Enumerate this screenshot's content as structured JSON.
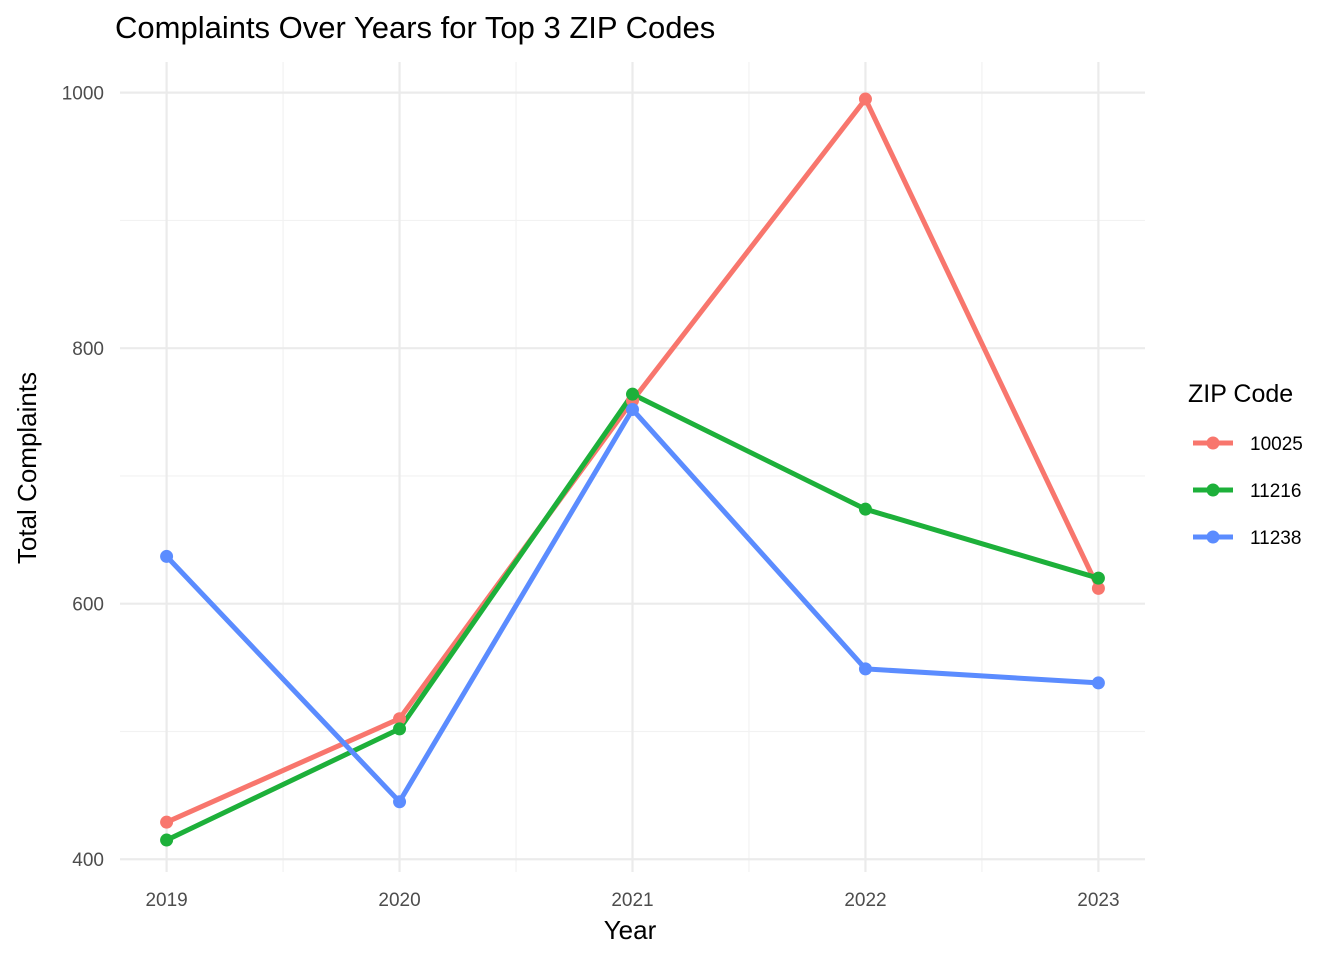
{
  "chart_data": {
    "type": "line",
    "title": "Complaints Over Years for Top 3 ZIP Codes",
    "xlabel": "Year",
    "ylabel": "Total Complaints",
    "x": [
      2019,
      2020,
      2021,
      2022,
      2023
    ],
    "x_ticks": [
      "2019",
      "2020",
      "2021",
      "2022",
      "2023"
    ],
    "y_ticks": [
      "400",
      "600",
      "800",
      "1000"
    ],
    "ylim": [
      390,
      1024
    ],
    "xlim": [
      2018.8,
      2023.2
    ],
    "grid": true,
    "legend": {
      "title": "ZIP Code",
      "placement": "right"
    },
    "series": [
      {
        "name": "10025",
        "color": "#F8766D",
        "values": [
          429,
          510,
          759,
          995,
          612
        ]
      },
      {
        "name": "11216",
        "color": "#1DB03A",
        "values": [
          415,
          502,
          764,
          674,
          620
        ]
      },
      {
        "name": "11238",
        "color": "#5B8CFF",
        "values": [
          637,
          445,
          752,
          549,
          538
        ]
      }
    ]
  }
}
